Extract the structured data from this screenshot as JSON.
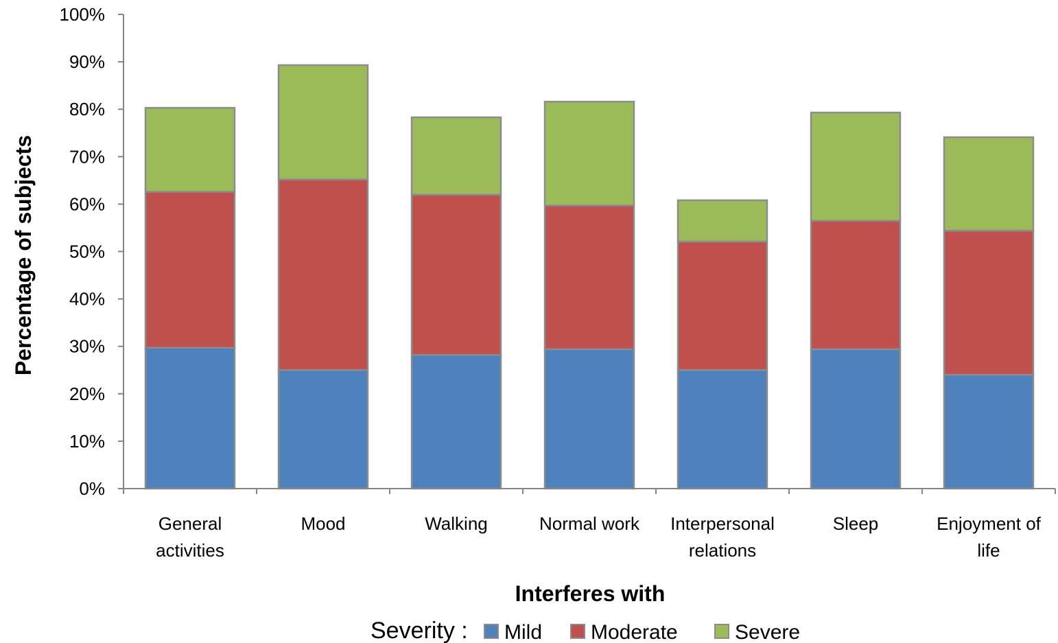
{
  "chart_data": {
    "type": "bar",
    "stacked": true,
    "categories": [
      [
        "General",
        "activities"
      ],
      [
        "Mood"
      ],
      [
        "Walking"
      ],
      [
        "Normal work"
      ],
      [
        "Interpersonal",
        "relations"
      ],
      [
        "Sleep"
      ],
      [
        "Enjoyment of",
        "life"
      ]
    ],
    "series": [
      {
        "name": "Mild",
        "color": "#4F81BD",
        "values": [
          29.7,
          25.0,
          28.2,
          29.4,
          25.0,
          29.4,
          24.0
        ]
      },
      {
        "name": "Moderate",
        "color": "#C0504D",
        "values": [
          32.9,
          40.2,
          33.8,
          30.3,
          27.1,
          27.1,
          30.4
        ]
      },
      {
        "name": "Severe",
        "color": "#9BBB59",
        "values": [
          17.7,
          24.1,
          16.3,
          21.9,
          8.7,
          22.8,
          19.7
        ]
      }
    ],
    "xlabel": "Interferes with",
    "ylabel": "Percentage of subjects",
    "ylim": [
      0,
      100
    ],
    "yticks": [
      "0%",
      "10%",
      "20%",
      "30%",
      "40%",
      "50%",
      "60%",
      "70%",
      "80%",
      "90%",
      "100%"
    ],
    "legend": {
      "title": "Severity :",
      "placement": "bottom"
    },
    "grid": false
  }
}
